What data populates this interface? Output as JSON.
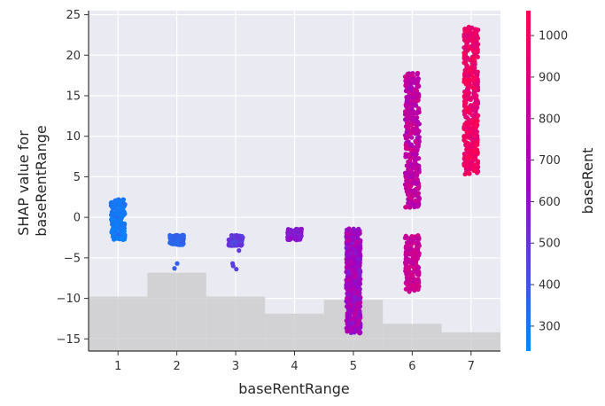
{
  "chart_data": {
    "type": "scatter",
    "subtype": "shap-dependence",
    "xlabel": "baseRentRange",
    "ylabel_lines": [
      "SHAP value for",
      "baseRentRange"
    ],
    "colorbar_label": "baseRent",
    "x_ticks": [
      "1",
      "2",
      "3",
      "4",
      "5",
      "6",
      "7"
    ],
    "y_ticks": [
      -15,
      -10,
      -5,
      0,
      5,
      10,
      15,
      20,
      25
    ],
    "colorbar_ticks": [
      300,
      400,
      500,
      600,
      700,
      800,
      900,
      1000
    ],
    "xlim": [
      0.5,
      7.5
    ],
    "ylim": [
      -16.5,
      25.5
    ],
    "colorbar_range": [
      240,
      1060
    ],
    "colors": {
      "low": "#008afb",
      "mid": "#a200c4",
      "high": "#ff0051",
      "background": "#eaeaf2",
      "grid": "#ffffff",
      "histogram": "#cccccc"
    },
    "grid": true,
    "histogram": [
      {
        "x": 1,
        "height": 0.16
      },
      {
        "x": 2,
        "height": 0.23
      },
      {
        "x": 3,
        "height": 0.16
      },
      {
        "x": 4,
        "height": 0.11
      },
      {
        "x": 5,
        "height": 0.15
      },
      {
        "x": 6,
        "height": 0.08
      },
      {
        "x": 7,
        "height": 0.055
      }
    ],
    "clusters": [
      {
        "x": 1,
        "y_min": -2.8,
        "y_max": 2.2,
        "rent_min": 260,
        "rent_max": 320,
        "count": 170,
        "extra": []
      },
      {
        "x": 2,
        "y_min": -3.4,
        "y_max": -2.2,
        "rent_min": 330,
        "rent_max": 380,
        "count": 140,
        "extra": [
          [
            -5.7,
            360
          ],
          [
            -6.3,
            370
          ]
        ]
      },
      {
        "x": 3,
        "y_min": -3.5,
        "y_max": -2.2,
        "rent_min": 430,
        "rent_max": 520,
        "count": 110,
        "extra": [
          [
            -5.7,
            450
          ],
          [
            -6.0,
            470
          ],
          [
            -6.4,
            460
          ],
          [
            -4.1,
            480
          ]
        ]
      },
      {
        "x": 4,
        "y_min": -2.8,
        "y_max": -1.4,
        "rent_min": 540,
        "rent_max": 620,
        "count": 90,
        "extra": []
      },
      {
        "x": 5,
        "y_min": -14.3,
        "y_max": -1.4,
        "rent_min": 560,
        "rent_max": 780,
        "count": 650,
        "extra": []
      },
      {
        "x": 6,
        "y_min": -9.2,
        "y_max": -2.2,
        "rent_min": 760,
        "rent_max": 880,
        "count": 190,
        "extra": []
      },
      {
        "x": 6,
        "y_min": 1.2,
        "y_max": 17.8,
        "rent_min": 680,
        "rent_max": 870,
        "count": 380,
        "extra": []
      },
      {
        "x": 7,
        "y_min": 5.3,
        "y_max": 23.5,
        "rent_min": 900,
        "rent_max": 1060,
        "count": 420,
        "extra": []
      }
    ]
  }
}
